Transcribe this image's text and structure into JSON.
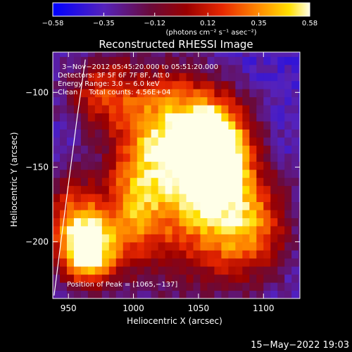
{
  "chart_data": {
    "type": "heatmap",
    "title": "Reconstructed RHESSI Image",
    "xlabel": "Heliocentric X (arcsec)",
    "ylabel": "Heliocentric Y (arcsec)",
    "xlim": [
      938,
      1128
    ],
    "ylim": [
      -238,
      -73
    ],
    "x_ticks": [
      950,
      1000,
      1050,
      1100
    ],
    "y_ticks": [
      -200,
      -150,
      -100
    ],
    "colorbar": {
      "range": [
        -0.58,
        0.58
      ],
      "tick_values": [
        -0.58,
        -0.35,
        -0.12,
        0.12,
        0.35,
        0.58
      ],
      "tick_labels": [
        "−0.58",
        "−0.35",
        "−0.12",
        "0.12",
        "0.35",
        "0.58"
      ],
      "unit_label": "(photons cm⁻² s⁻¹ asec⁻²)"
    },
    "annotations": [
      "3−Nov−2012 05:45:20.000 to 05:51:20.000",
      "Detectors: 3F 5F 6F 7F 8F, Att 0",
      "Energy Range: 3.0 − 6.0 keV",
      "Clean     Total counts: 4.56E+04"
    ],
    "peak_label": "Position of Peak = [1065,−137]",
    "sources": [
      {
        "x": 1063,
        "y": -137,
        "peak": 0.58,
        "sx": 18,
        "sy": 22
      },
      {
        "x": 1045,
        "y": -170,
        "peak": 0.32,
        "sx": 32,
        "sy": 40
      },
      {
        "x": 1025,
        "y": -120,
        "peak": 0.18,
        "sx": 25,
        "sy": 28
      },
      {
        "x": 1090,
        "y": -190,
        "peak": 0.2,
        "sx": 22,
        "sy": 25
      },
      {
        "x": 966,
        "y": -207,
        "peak": 0.48,
        "sx": 15,
        "sy": 16
      },
      {
        "x": 955,
        "y": -185,
        "peak": 0.22,
        "sx": 18,
        "sy": 22
      },
      {
        "x": 1000,
        "y": -175,
        "peak": 0.12,
        "sx": 15,
        "sy": 30
      },
      {
        "x": 975,
        "y": -100,
        "peak": 0.12,
        "sx": 20,
        "sy": 18
      }
    ],
    "background_level": -0.38,
    "limb_curve": [
      [
        963,
        -78
      ],
      [
        957,
        -115
      ],
      [
        951,
        -155
      ],
      [
        945,
        -195
      ],
      [
        939,
        -236
      ]
    ]
  },
  "timestamp": "15−May−2022 19:03"
}
